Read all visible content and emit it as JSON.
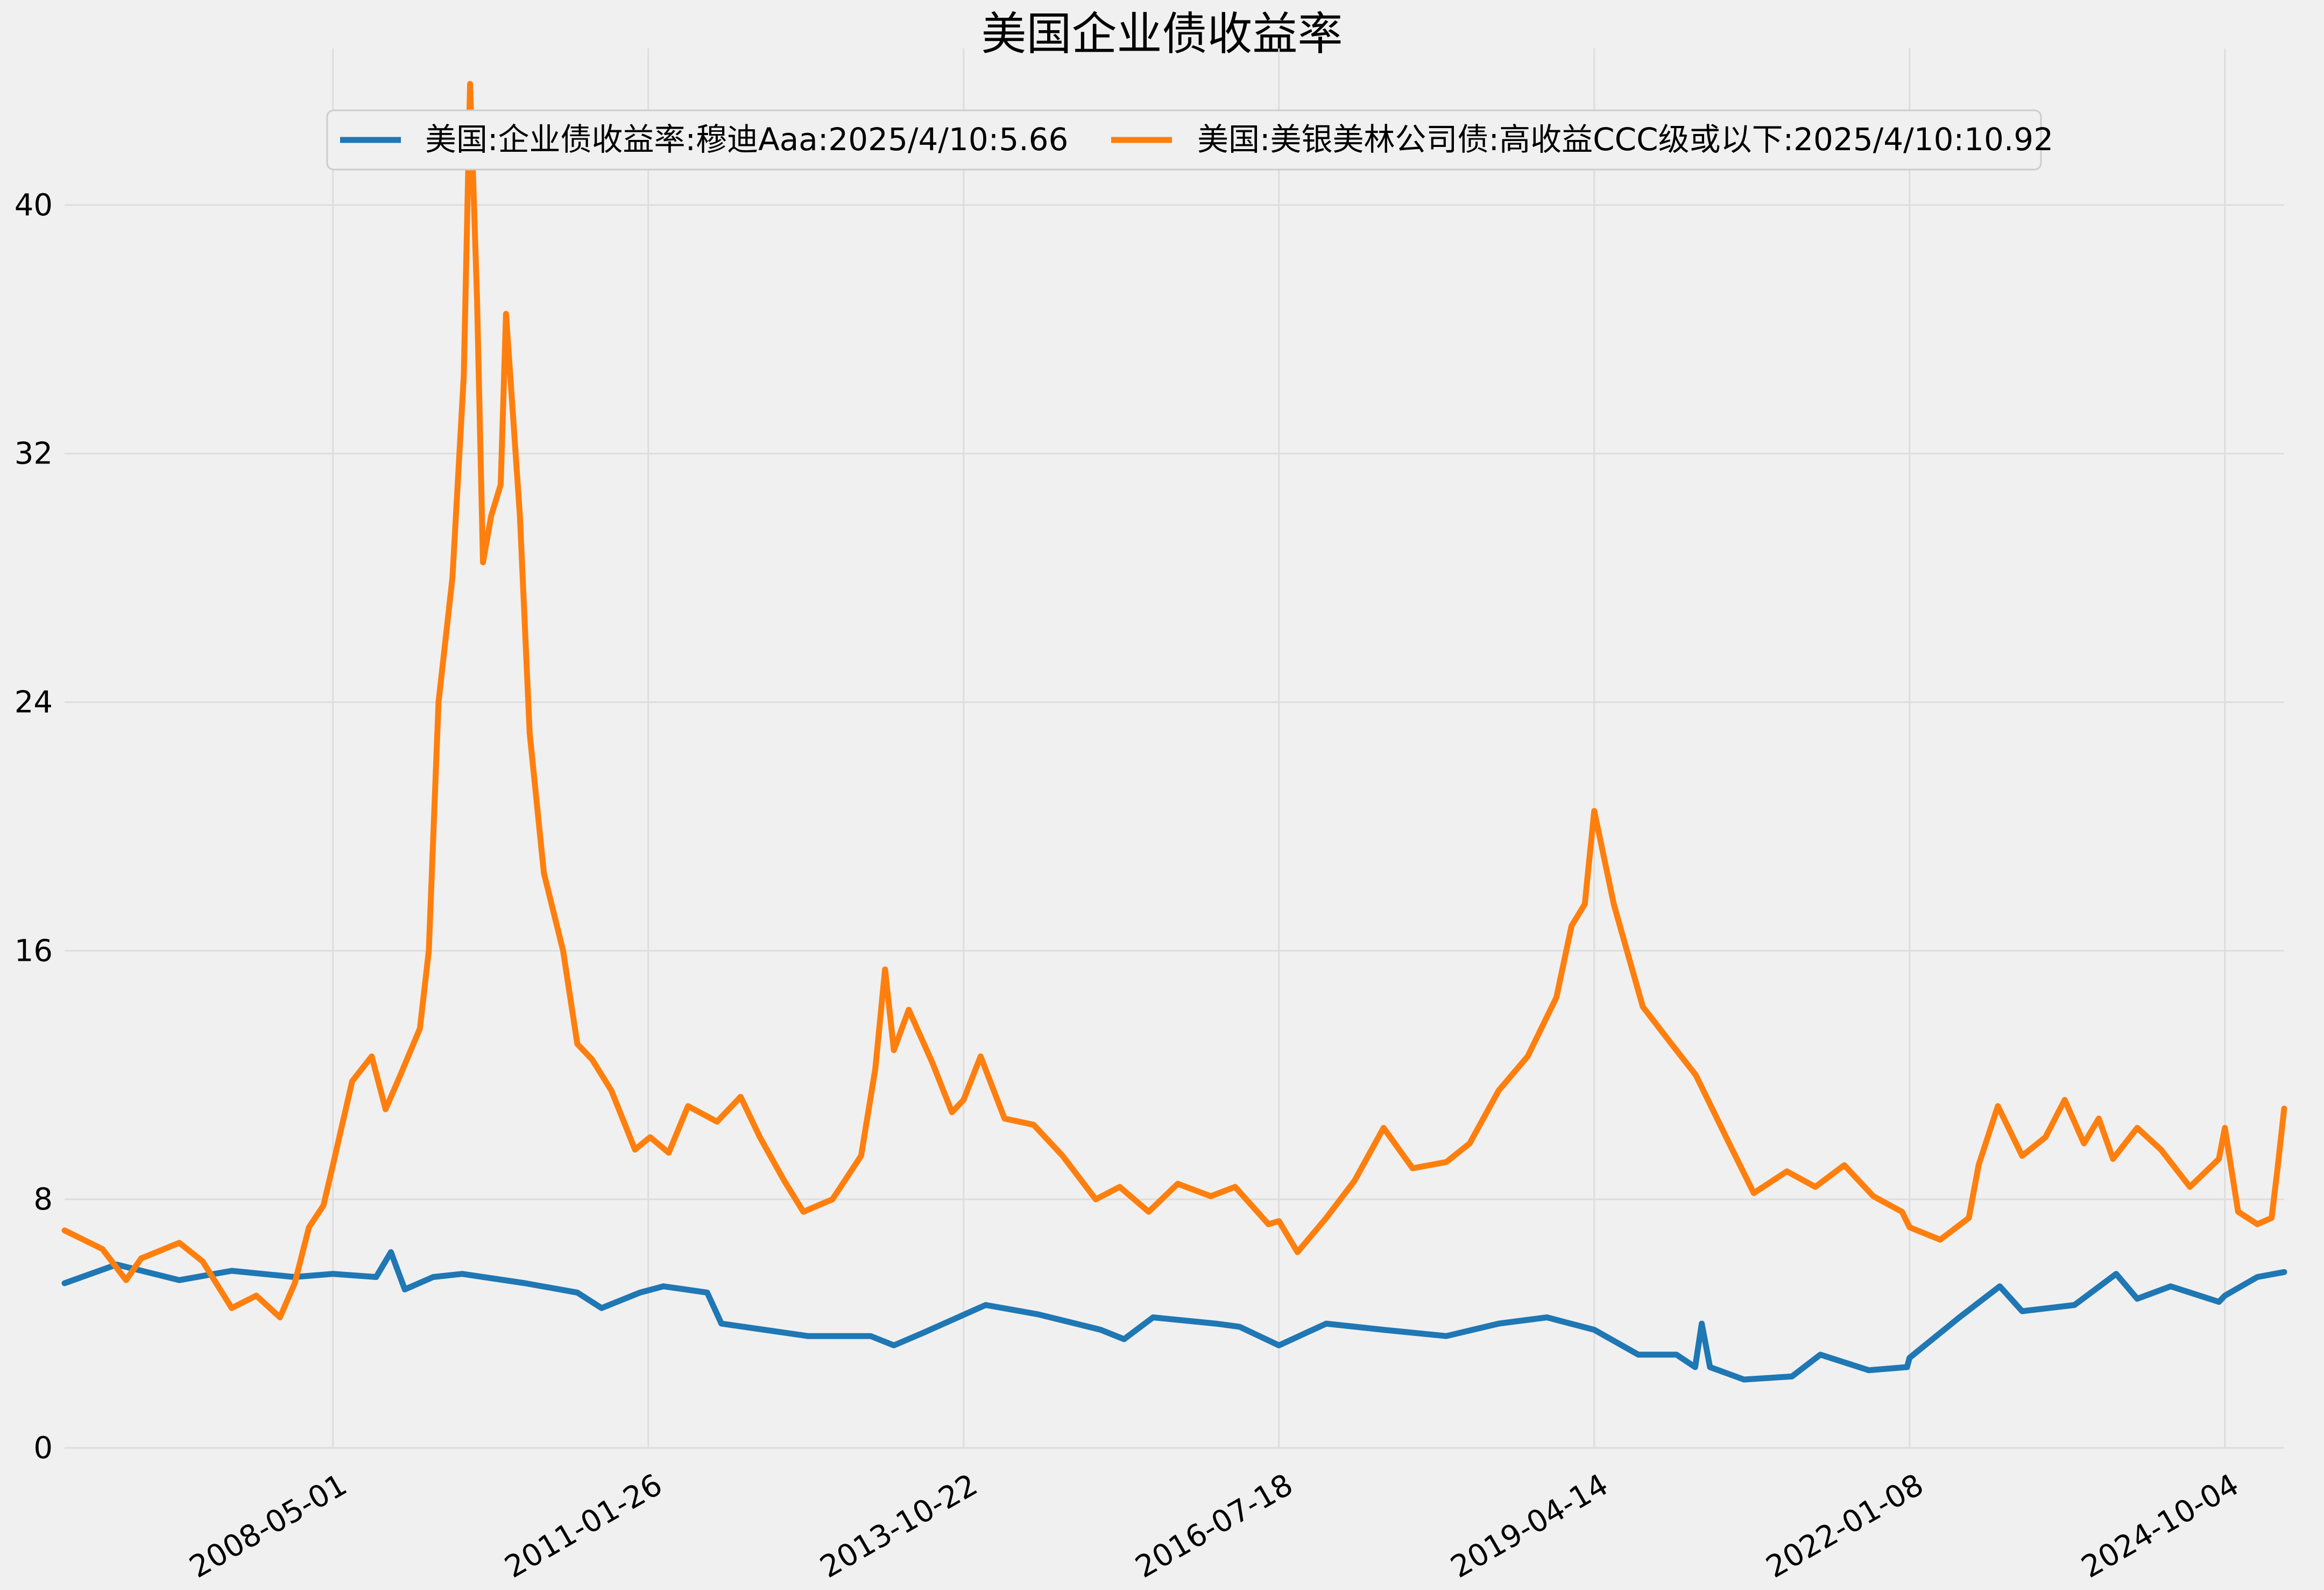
{
  "chart_data": {
    "type": "line",
    "title": "美国企业债收益率",
    "xlabel": "",
    "ylabel": "",
    "x_range": [
      "2006-01-01",
      "2025-04-10"
    ],
    "ylim": [
      0,
      44
    ],
    "y_ticks": [
      0,
      8,
      16,
      24,
      32,
      40
    ],
    "y_tick_labels": [
      "0",
      "8",
      "16",
      "24",
      "32",
      "40"
    ],
    "x_ticks": [
      "2008-05-01",
      "2011-01-26",
      "2013-10-22",
      "2016-07-18",
      "2019-04-14",
      "2022-01-08",
      "2024-10-04"
    ],
    "grid": true,
    "legend_position": "top-center",
    "series": [
      {
        "name": "美国:企业债收益率:穆迪Aaa:2025/4/10:5.66",
        "color": "#1f77b4",
        "points": [
          [
            "2006-01-01",
            5.3
          ],
          [
            "2006-06-15",
            5.9
          ],
          [
            "2006-12-31",
            5.4
          ],
          [
            "2007-06-15",
            5.7
          ],
          [
            "2007-12-31",
            5.5
          ],
          [
            "2008-05-01",
            5.6
          ],
          [
            "2008-09-15",
            5.5
          ],
          [
            "2008-11-01",
            6.3
          ],
          [
            "2008-12-15",
            5.1
          ],
          [
            "2009-03-15",
            5.5
          ],
          [
            "2009-06-15",
            5.6
          ],
          [
            "2009-12-31",
            5.3
          ],
          [
            "2010-06-15",
            5.0
          ],
          [
            "2010-08-31",
            4.5
          ],
          [
            "2010-12-31",
            5.0
          ],
          [
            "2011-03-15",
            5.2
          ],
          [
            "2011-08-01",
            5.0
          ],
          [
            "2011-09-15",
            4.0
          ],
          [
            "2012-06-15",
            3.6
          ],
          [
            "2012-12-31",
            3.6
          ],
          [
            "2013-03-15",
            3.3
          ],
          [
            "2013-06-15",
            3.7
          ],
          [
            "2013-12-31",
            4.6
          ],
          [
            "2014-06-15",
            4.3
          ],
          [
            "2014-12-31",
            3.8
          ],
          [
            "2015-03-15",
            3.5
          ],
          [
            "2015-06-15",
            4.2
          ],
          [
            "2015-12-31",
            4.0
          ],
          [
            "2016-03-15",
            3.9
          ],
          [
            "2016-07-18",
            3.3
          ],
          [
            "2016-12-15",
            4.0
          ],
          [
            "2017-06-15",
            3.8
          ],
          [
            "2017-12-31",
            3.6
          ],
          [
            "2018-06-15",
            4.0
          ],
          [
            "2018-11-15",
            4.2
          ],
          [
            "2019-04-14",
            3.8
          ],
          [
            "2019-09-01",
            3.0
          ],
          [
            "2019-12-31",
            3.0
          ],
          [
            "2020-02-28",
            2.6
          ],
          [
            "2020-03-20",
            4.0
          ],
          [
            "2020-04-15",
            2.6
          ],
          [
            "2020-08-01",
            2.2
          ],
          [
            "2020-12-31",
            2.3
          ],
          [
            "2021-03-31",
            3.0
          ],
          [
            "2021-09-01",
            2.5
          ],
          [
            "2021-12-31",
            2.6
          ],
          [
            "2022-01-08",
            2.9
          ],
          [
            "2022-06-15",
            4.2
          ],
          [
            "2022-10-21",
            5.2
          ],
          [
            "2022-12-31",
            4.4
          ],
          [
            "2023-06-15",
            4.6
          ],
          [
            "2023-10-25",
            5.6
          ],
          [
            "2023-12-31",
            4.8
          ],
          [
            "2024-04-15",
            5.2
          ],
          [
            "2024-09-15",
            4.7
          ],
          [
            "2024-10-04",
            4.9
          ],
          [
            "2025-01-15",
            5.5
          ],
          [
            "2025-04-10",
            5.66
          ]
        ]
      },
      {
        "name": "美国:美银美林公司债:高收益CCC级或以下:2025/4/10:10.92",
        "color": "#ff7f0e",
        "points": [
          [
            "2006-01-01",
            7.0
          ],
          [
            "2006-05-01",
            6.4
          ],
          [
            "2006-07-15",
            5.4
          ],
          [
            "2006-09-01",
            6.1
          ],
          [
            "2006-12-31",
            6.6
          ],
          [
            "2007-03-15",
            6.0
          ],
          [
            "2007-06-15",
            4.5
          ],
          [
            "2007-09-01",
            4.9
          ],
          [
            "2007-11-15",
            4.2
          ],
          [
            "2008-01-01",
            5.3
          ],
          [
            "2008-02-15",
            7.1
          ],
          [
            "2008-04-01",
            7.8
          ],
          [
            "2008-05-01",
            9.1
          ],
          [
            "2008-07-01",
            11.8
          ],
          [
            "2008-09-01",
            12.6
          ],
          [
            "2008-10-15",
            10.9
          ],
          [
            "2008-12-01",
            12.0
          ],
          [
            "2009-02-01",
            13.5
          ],
          [
            "2009-03-01",
            16.0
          ],
          [
            "2009-04-01",
            24.0
          ],
          [
            "2009-05-15",
            28.0
          ],
          [
            "2009-06-20",
            34.5
          ],
          [
            "2009-07-10",
            43.9
          ],
          [
            "2009-08-01",
            37.0
          ],
          [
            "2009-08-20",
            28.5
          ],
          [
            "2009-09-15",
            30.0
          ],
          [
            "2009-10-15",
            31.0
          ],
          [
            "2009-11-01",
            36.5
          ],
          [
            "2009-12-15",
            30.0
          ],
          [
            "2010-01-15",
            23.0
          ],
          [
            "2010-03-01",
            18.5
          ],
          [
            "2010-05-01",
            16.0
          ],
          [
            "2010-06-15",
            13.0
          ],
          [
            "2010-08-01",
            12.5
          ],
          [
            "2010-10-01",
            11.5
          ],
          [
            "2010-12-15",
            9.6
          ],
          [
            "2011-02-01",
            10.0
          ],
          [
            "2011-04-01",
            9.5
          ],
          [
            "2011-06-01",
            11.0
          ],
          [
            "2011-09-01",
            10.5
          ],
          [
            "2011-11-15",
            11.3
          ],
          [
            "2012-01-15",
            10.0
          ],
          [
            "2012-04-01",
            8.6
          ],
          [
            "2012-06-01",
            7.6
          ],
          [
            "2012-09-01",
            8.0
          ],
          [
            "2012-12-01",
            9.4
          ],
          [
            "2013-01-15",
            12.2
          ],
          [
            "2013-02-15",
            15.4
          ],
          [
            "2013-03-15",
            12.8
          ],
          [
            "2013-05-01",
            14.1
          ],
          [
            "2013-07-15",
            12.4
          ],
          [
            "2013-09-15",
            10.8
          ],
          [
            "2013-10-22",
            11.2
          ],
          [
            "2013-12-15",
            12.6
          ],
          [
            "2014-03-01",
            10.6
          ],
          [
            "2014-06-01",
            10.4
          ],
          [
            "2014-09-01",
            9.4
          ],
          [
            "2014-12-15",
            8.0
          ],
          [
            "2015-03-01",
            8.4
          ],
          [
            "2015-06-01",
            7.6
          ],
          [
            "2015-09-01",
            8.5
          ],
          [
            "2015-12-15",
            8.1
          ],
          [
            "2016-03-01",
            8.4
          ],
          [
            "2016-06-15",
            7.2
          ],
          [
            "2016-07-18",
            7.3
          ],
          [
            "2016-09-15",
            6.3
          ],
          [
            "2016-12-15",
            7.4
          ],
          [
            "2017-03-15",
            8.6
          ],
          [
            "2017-06-15",
            10.3
          ],
          [
            "2017-09-15",
            9.0
          ],
          [
            "2017-12-31",
            9.2
          ],
          [
            "2018-03-15",
            9.8
          ],
          [
            "2018-06-15",
            11.5
          ],
          [
            "2018-09-15",
            12.6
          ],
          [
            "2018-12-15",
            14.5
          ],
          [
            "2019-02-01",
            16.8
          ],
          [
            "2019-03-15",
            17.5
          ],
          [
            "2019-04-14",
            20.5
          ],
          [
            "2019-06-15",
            17.5
          ],
          [
            "2019-09-15",
            14.2
          ],
          [
            "2019-12-15",
            13.0
          ],
          [
            "2020-03-01",
            12.0
          ],
          [
            "2020-06-15",
            9.8
          ],
          [
            "2020-09-01",
            8.2
          ],
          [
            "2020-12-15",
            8.9
          ],
          [
            "2021-03-15",
            8.4
          ],
          [
            "2021-06-15",
            9.1
          ],
          [
            "2021-09-15",
            8.1
          ],
          [
            "2021-12-15",
            7.6
          ],
          [
            "2022-01-08",
            7.1
          ],
          [
            "2022-04-15",
            6.7
          ],
          [
            "2022-07-15",
            7.4
          ],
          [
            "2022-08-15",
            9.1
          ],
          [
            "2022-10-15",
            11.0
          ],
          [
            "2022-12-31",
            9.4
          ],
          [
            "2023-03-15",
            10.0
          ],
          [
            "2023-05-15",
            11.2
          ],
          [
            "2023-07-15",
            9.8
          ],
          [
            "2023-08-31",
            10.6
          ],
          [
            "2023-10-15",
            9.3
          ],
          [
            "2023-12-31",
            10.3
          ],
          [
            "2024-03-15",
            9.6
          ],
          [
            "2024-06-15",
            8.4
          ],
          [
            "2024-09-15",
            9.3
          ],
          [
            "2024-10-04",
            10.3
          ],
          [
            "2024-11-15",
            7.6
          ],
          [
            "2025-01-15",
            7.2
          ],
          [
            "2025-03-01",
            7.4
          ],
          [
            "2025-03-20",
            9.0
          ],
          [
            "2025-04-10",
            10.92
          ]
        ]
      }
    ]
  }
}
